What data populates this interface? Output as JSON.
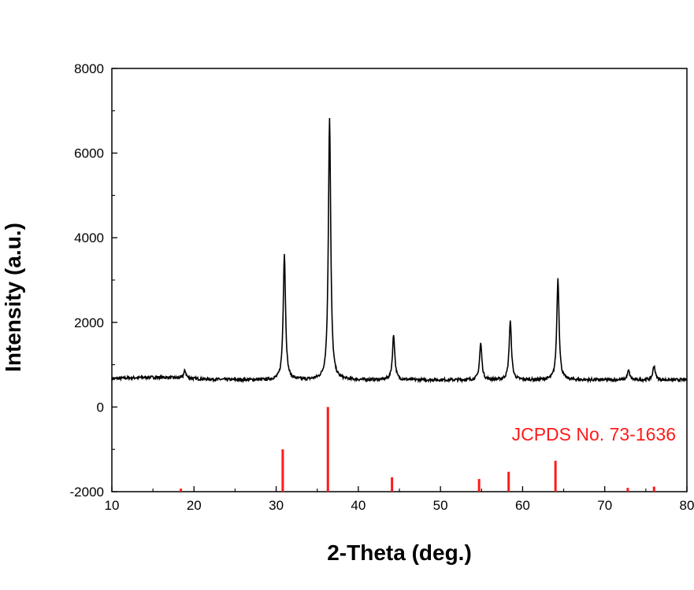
{
  "chart_data": {
    "type": "line",
    "title": "",
    "xlabel": "2-Theta (deg.)",
    "ylabel": "Intensity (a.u.)",
    "xlim": [
      10,
      80
    ],
    "ylim": [
      -2000,
      8000
    ],
    "x_ticks": [
      10,
      20,
      30,
      40,
      50,
      60,
      70,
      80
    ],
    "y_ticks": [
      -2000,
      0,
      2000,
      4000,
      6000,
      8000
    ],
    "grid": false,
    "series": [
      {
        "color": "#000000",
        "baseline": 640,
        "peaks": [
          {
            "x": 18.9,
            "y": 820
          },
          {
            "x": 31.0,
            "y": 3620
          },
          {
            "x": 36.5,
            "y": 6830
          },
          {
            "x": 44.3,
            "y": 1700
          },
          {
            "x": 54.9,
            "y": 1500
          },
          {
            "x": 58.5,
            "y": 2020
          },
          {
            "x": 64.3,
            "y": 3030
          },
          {
            "x": 72.9,
            "y": 860
          },
          {
            "x": 76.0,
            "y": 980
          }
        ]
      },
      {
        "name": "JCPDS No. 73-1636",
        "color": "#ff1a1a",
        "style": "stick",
        "base": -2000,
        "sticks": [
          {
            "x": 18.4,
            "y": -1930
          },
          {
            "x": 30.8,
            "y": -1000
          },
          {
            "x": 36.3,
            "y": 0
          },
          {
            "x": 44.1,
            "y": -1660
          },
          {
            "x": 54.7,
            "y": -1700
          },
          {
            "x": 58.3,
            "y": -1530
          },
          {
            "x": 64.0,
            "y": -1270
          },
          {
            "x": 72.8,
            "y": -1910
          },
          {
            "x": 76.0,
            "y": -1880
          }
        ]
      }
    ]
  }
}
